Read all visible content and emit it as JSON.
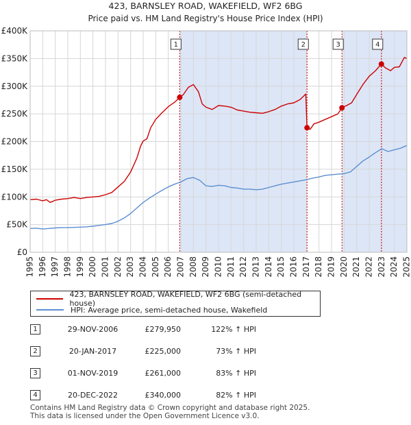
{
  "chart_data": {
    "type": "line",
    "title": "423, BARNSLEY ROAD, WAKEFIELD, WF2 6BG",
    "subtitle": "Price paid vs. HM Land Registry's House Price Index (HPI)",
    "xlim": [
      1995,
      2025
    ],
    "ylim": [
      0,
      400000
    ],
    "x_ticks": [
      "1995",
      "1996",
      "1997",
      "1998",
      "1999",
      "2000",
      "2001",
      "2002",
      "2003",
      "2004",
      "2005",
      "2006",
      "2007",
      "2008",
      "2009",
      "2010",
      "2011",
      "2012",
      "2013",
      "2014",
      "2015",
      "2016",
      "2017",
      "2018",
      "2019",
      "2020",
      "2021",
      "2022",
      "2023",
      "2024",
      "2025"
    ],
    "y_ticks": [
      {
        "value": 0,
        "label": "£0"
      },
      {
        "value": 50000,
        "label": "£50K"
      },
      {
        "value": 100000,
        "label": "£100K"
      },
      {
        "value": 150000,
        "label": "£150K"
      },
      {
        "value": 200000,
        "label": "£200K"
      },
      {
        "value": 250000,
        "label": "£250K"
      },
      {
        "value": 300000,
        "label": "£300K"
      },
      {
        "value": 350000,
        "label": "£350K"
      },
      {
        "value": 400000,
        "label": "£400K"
      }
    ],
    "series": [
      {
        "name": "423, BARNSLEY ROAD, WAKEFIELD, WF2 6BG (semi-detached house)",
        "color": "#cc0000",
        "points": [
          [
            1995.0,
            95000
          ],
          [
            1995.5,
            96000
          ],
          [
            1996.0,
            93000
          ],
          [
            1996.3,
            95000
          ],
          [
            1996.6,
            90000
          ],
          [
            1997.0,
            94000
          ],
          [
            1997.5,
            96000
          ],
          [
            1998.0,
            97000
          ],
          [
            1998.5,
            99000
          ],
          [
            1999.0,
            97000
          ],
          [
            1999.5,
            99000
          ],
          [
            2000.0,
            100000
          ],
          [
            2000.5,
            101000
          ],
          [
            2001.0,
            104000
          ],
          [
            2001.5,
            108000
          ],
          [
            2002.0,
            118000
          ],
          [
            2002.5,
            128000
          ],
          [
            2003.0,
            145000
          ],
          [
            2003.5,
            170000
          ],
          [
            2003.8,
            192000
          ],
          [
            2004.0,
            201000
          ],
          [
            2004.3,
            205000
          ],
          [
            2004.6,
            225000
          ],
          [
            2005.0,
            240000
          ],
          [
            2005.5,
            252000
          ],
          [
            2006.0,
            263000
          ],
          [
            2006.5,
            271000
          ],
          [
            2006.91,
            279950
          ],
          [
            2007.2,
            285000
          ],
          [
            2007.6,
            298000
          ],
          [
            2008.0,
            303000
          ],
          [
            2008.4,
            290000
          ],
          [
            2008.7,
            268000
          ],
          [
            2009.0,
            262000
          ],
          [
            2009.5,
            258000
          ],
          [
            2010.0,
            265000
          ],
          [
            2010.5,
            264000
          ],
          [
            2011.0,
            262000
          ],
          [
            2011.5,
            257000
          ],
          [
            2012.0,
            255000
          ],
          [
            2012.5,
            253000
          ],
          [
            2013.0,
            252000
          ],
          [
            2013.5,
            251000
          ],
          [
            2014.0,
            254000
          ],
          [
            2014.5,
            258000
          ],
          [
            2015.0,
            264000
          ],
          [
            2015.5,
            268000
          ],
          [
            2016.0,
            270000
          ],
          [
            2016.5,
            276000
          ],
          [
            2016.95,
            286000
          ],
          [
            2017.05,
            225000
          ],
          [
            2017.3,
            222000
          ],
          [
            2017.6,
            232000
          ],
          [
            2018.0,
            235000
          ],
          [
            2018.5,
            240000
          ],
          [
            2019.0,
            245000
          ],
          [
            2019.5,
            250000
          ],
          [
            2019.83,
            261000
          ],
          [
            2020.2,
            265000
          ],
          [
            2020.6,
            270000
          ],
          [
            2021.0,
            285000
          ],
          [
            2021.5,
            303000
          ],
          [
            2022.0,
            318000
          ],
          [
            2022.5,
            328000
          ],
          [
            2022.97,
            340000
          ],
          [
            2023.3,
            333000
          ],
          [
            2023.7,
            328000
          ],
          [
            2024.0,
            334000
          ],
          [
            2024.4,
            335000
          ],
          [
            2024.8,
            352000
          ],
          [
            2025.0,
            350000
          ]
        ]
      },
      {
        "name": "HPI: Average price, semi-detached house, Wakefield",
        "color": "#5b8fd0",
        "points": [
          [
            1995.0,
            43000
          ],
          [
            1995.5,
            43500
          ],
          [
            1996.0,
            42000
          ],
          [
            1996.5,
            43000
          ],
          [
            1997.0,
            44000
          ],
          [
            1997.5,
            44500
          ],
          [
            1998.0,
            44500
          ],
          [
            1998.5,
            45000
          ],
          [
            1999.0,
            45500
          ],
          [
            1999.5,
            46000
          ],
          [
            2000.0,
            47000
          ],
          [
            2000.5,
            48500
          ],
          [
            2001.0,
            50000
          ],
          [
            2001.5,
            52000
          ],
          [
            2002.0,
            56000
          ],
          [
            2002.5,
            62000
          ],
          [
            2003.0,
            70000
          ],
          [
            2003.5,
            80000
          ],
          [
            2004.0,
            90000
          ],
          [
            2004.5,
            98000
          ],
          [
            2005.0,
            105000
          ],
          [
            2005.5,
            112000
          ],
          [
            2006.0,
            118000
          ],
          [
            2006.5,
            123000
          ],
          [
            2007.0,
            127000
          ],
          [
            2007.5,
            133000
          ],
          [
            2008.0,
            135000
          ],
          [
            2008.5,
            130000
          ],
          [
            2009.0,
            120000
          ],
          [
            2009.5,
            119000
          ],
          [
            2010.0,
            121000
          ],
          [
            2010.5,
            120000
          ],
          [
            2011.0,
            117000
          ],
          [
            2011.5,
            116000
          ],
          [
            2012.0,
            114000
          ],
          [
            2012.5,
            114000
          ],
          [
            2013.0,
            113000
          ],
          [
            2013.5,
            114000
          ],
          [
            2014.0,
            117000
          ],
          [
            2014.5,
            120000
          ],
          [
            2015.0,
            123000
          ],
          [
            2015.5,
            125000
          ],
          [
            2016.0,
            127000
          ],
          [
            2016.5,
            129000
          ],
          [
            2017.0,
            131000
          ],
          [
            2017.5,
            134000
          ],
          [
            2018.0,
            136000
          ],
          [
            2018.5,
            139000
          ],
          [
            2019.0,
            140000
          ],
          [
            2019.5,
            141000
          ],
          [
            2020.0,
            142000
          ],
          [
            2020.5,
            145000
          ],
          [
            2021.0,
            155000
          ],
          [
            2021.5,
            165000
          ],
          [
            2022.0,
            172000
          ],
          [
            2022.5,
            180000
          ],
          [
            2023.0,
            187000
          ],
          [
            2023.5,
            182000
          ],
          [
            2024.0,
            185000
          ],
          [
            2024.5,
            188000
          ],
          [
            2025.0,
            193000
          ]
        ]
      }
    ],
    "sales": [
      {
        "label": "1",
        "year": 2006.91,
        "price": 279950
      },
      {
        "label": "2",
        "year": 2017.05,
        "price": 225000
      },
      {
        "label": "3",
        "year": 2019.83,
        "price": 261000
      },
      {
        "label": "4",
        "year": 2022.97,
        "price": 340000
      }
    ],
    "shade_color": "#dde6f7",
    "vline_color": "#cc0000"
  },
  "legend": {
    "red_label": "423, BARNSLEY ROAD, WAKEFIELD, WF2 6BG (semi-detached house)",
    "blue_label": "HPI: Average price, semi-detached house, Wakefield"
  },
  "transactions": [
    {
      "num": "1",
      "date": "29-NOV-2006",
      "price": "£279,950",
      "hpi": "122% ↑ HPI"
    },
    {
      "num": "2",
      "date": "20-JAN-2017",
      "price": "£225,000",
      "hpi": "73% ↑ HPI"
    },
    {
      "num": "3",
      "date": "01-NOV-2019",
      "price": "£261,000",
      "hpi": "83% ↑ HPI"
    },
    {
      "num": "4",
      "date": "20-DEC-2022",
      "price": "£340,000",
      "hpi": "82% ↑ HPI"
    }
  ],
  "footer": {
    "line1": "Contains HM Land Registry data © Crown copyright and database right 2025.",
    "line2": "This data is licensed under the Open Government Licence v3.0."
  }
}
